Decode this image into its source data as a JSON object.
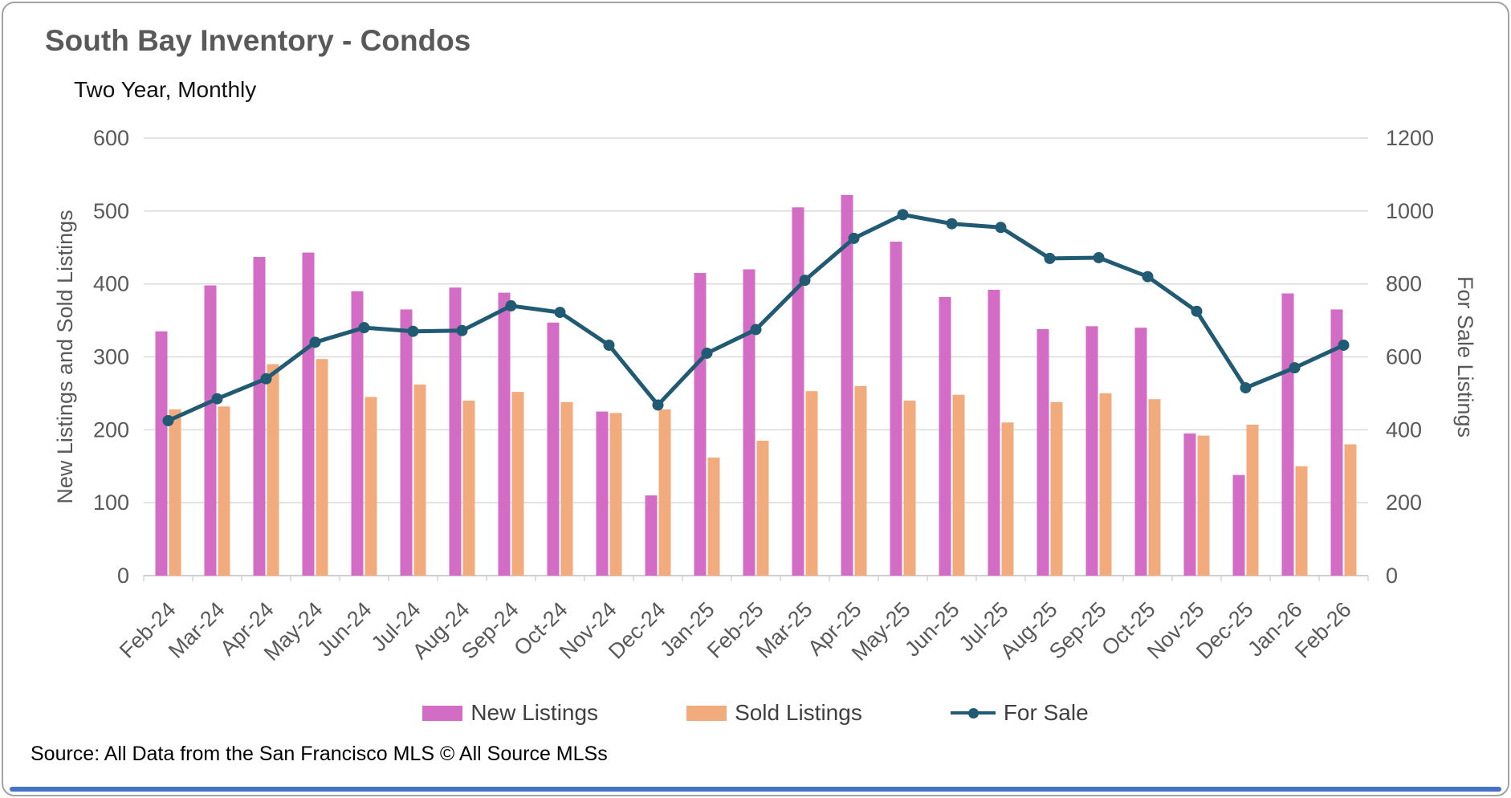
{
  "chart_data": {
    "type": "combo-bar-line",
    "title": "South Bay Inventory - Condos",
    "subtitle": "Two Year, Monthly",
    "categories": [
      "Feb-24",
      "Mar-24",
      "Apr-24",
      "May-24",
      "Jun-24",
      "Jul-24",
      "Aug-24",
      "Sep-24",
      "Oct-24",
      "Nov-24",
      "Dec-24",
      "Jan-25",
      "Feb-25",
      "Mar-25",
      "Apr-25",
      "May-25",
      "Jun-25",
      "Jul-25",
      "Aug-25",
      "Sep-25",
      "Oct-25",
      "Nov-25",
      "Dec-25",
      "Jan-26",
      "Feb-26"
    ],
    "series": [
      {
        "name": "New Listings",
        "type": "bar",
        "axis": "left",
        "color": "#D36CC4",
        "values": [
          335,
          398,
          437,
          443,
          390,
          365,
          395,
          388,
          347,
          225,
          110,
          415,
          420,
          505,
          522,
          458,
          382,
          392,
          338,
          342,
          340,
          195,
          138,
          387,
          365
        ]
      },
      {
        "name": "Sold Listings",
        "type": "bar",
        "axis": "left",
        "color": "#F2AB7D",
        "values": [
          228,
          232,
          290,
          297,
          245,
          262,
          240,
          252,
          238,
          223,
          228,
          162,
          185,
          253,
          260,
          240,
          248,
          210,
          238,
          250,
          242,
          192,
          207,
          150,
          180
        ]
      },
      {
        "name": "For Sale",
        "type": "line",
        "axis": "right",
        "color": "#205A73",
        "values": [
          425,
          485,
          540,
          640,
          680,
          670,
          672,
          740,
          722,
          632,
          468,
          610,
          675,
          810,
          925,
          990,
          965,
          955,
          870,
          872,
          820,
          725,
          515,
          570,
          632
        ]
      }
    ],
    "left_axis": {
      "title": "New Listings and Sold Listings",
      "min": 0,
      "max": 600,
      "ticks": [
        0,
        100,
        200,
        300,
        400,
        500,
        600
      ]
    },
    "right_axis": {
      "title": "For Sale Listings",
      "min": 0,
      "max": 1200,
      "ticks": [
        0,
        200,
        400,
        600,
        800,
        1000,
        1200
      ]
    },
    "grid": true,
    "legend_position": "bottom",
    "source": "Source: All Data from the San Francisco MLS © All Source MLSs",
    "colors": {
      "grid": "#D9D9D9",
      "axis_line": "#BFBFBF",
      "axis_text": "#595959",
      "accent_bar": "#4472C4"
    }
  }
}
